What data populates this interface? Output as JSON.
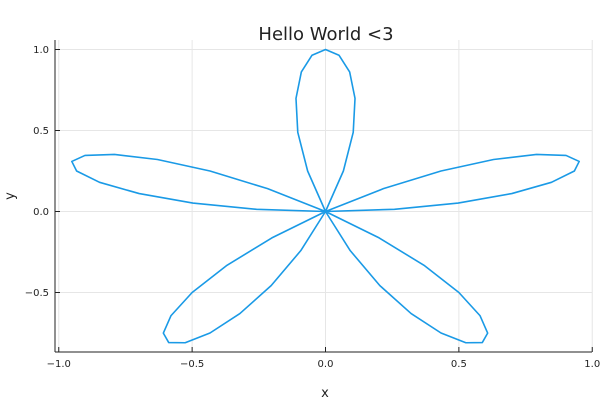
{
  "chart_data": {
    "type": "line",
    "title": "Hello World <3",
    "xlabel": "x",
    "ylabel": "y",
    "xlim": [
      -1.0,
      1.0
    ],
    "ylim": [
      -0.86,
      1.03
    ],
    "xticks": [
      -1.0,
      -0.5,
      0.0,
      0.5,
      1.0
    ],
    "xtick_labels": [
      "−1.0",
      "−0.5",
      "0.0",
      "0.5",
      "1.0"
    ],
    "yticks": [
      -0.5,
      0.0,
      0.5,
      1.0
    ],
    "ytick_labels": [
      "−0.5",
      "0.0",
      "0.5",
      "1.0"
    ],
    "grid": true,
    "legend": "none",
    "series": [
      {
        "equation": "r = sin(5θ)",
        "color": "#1a9ae6",
        "theta_range": [
          0,
          6.283185307
        ],
        "samples": 120
      }
    ]
  }
}
